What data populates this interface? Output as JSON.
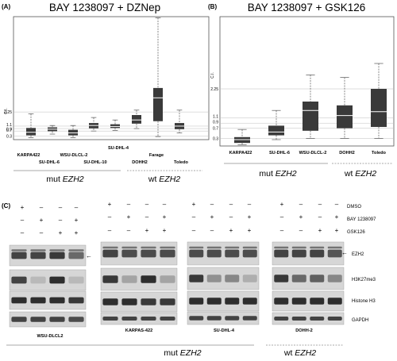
{
  "panel_a": {
    "label": "(A)",
    "title": "BAY 1238097 + DZNep",
    "ylabel": "C.I.",
    "groups": [
      {
        "text": "mut",
        "gene": "EZH2"
      },
      {
        "text": "wt",
        "gene": "EZH2"
      }
    ]
  },
  "panel_b": {
    "label": "(B)",
    "title": "BAY 1238097 + GSK126",
    "ylabel": "C.I.",
    "groups": [
      {
        "text": "mut",
        "gene": "EZH2"
      },
      {
        "text": "wt",
        "gene": "EZH2"
      }
    ]
  },
  "chart_data": [
    {
      "type": "box",
      "title": "BAY 1238097 + DZNep",
      "ylabel": "C.I.",
      "yticks": [
        "0.3",
        "0.7",
        "0.9",
        "1.1",
        "2.25"
      ],
      "ylim": [
        0,
        10
      ],
      "categories": [
        "KARPA422",
        "SU-DHL-6",
        "WSU-DLCL-2",
        "SU-DHL-10",
        "SU-DHL-4",
        "DOHH2",
        "Farage",
        "Toledo"
      ],
      "boxes": [
        {
          "min": 0.15,
          "q1": 0.35,
          "median": 0.6,
          "q3": 0.95,
          "max": 2.1
        },
        {
          "min": 0.45,
          "q1": 0.68,
          "median": 0.85,
          "q3": 1.0,
          "max": 1.15
        },
        {
          "min": 0.15,
          "q1": 0.35,
          "median": 0.55,
          "q3": 0.8,
          "max": 1.15
        },
        {
          "min": 0.7,
          "q1": 0.92,
          "median": 1.15,
          "q3": 1.35,
          "max": 1.8
        },
        {
          "min": 0.75,
          "q1": 0.95,
          "median": 1.07,
          "q3": 1.25,
          "max": 1.6
        },
        {
          "min": 0.9,
          "q1": 1.3,
          "median": 1.6,
          "q3": 2.0,
          "max": 2.4
        },
        {
          "min": 0.25,
          "q1": 1.5,
          "median": 3.4,
          "q3": 4.2,
          "max": 9.9
        },
        {
          "min": 0.55,
          "q1": 0.85,
          "median": 1.1,
          "q3": 1.35,
          "max": 2.4
        }
      ]
    },
    {
      "type": "box",
      "title": "BAY 1238097 + GSK126",
      "ylabel": "C.I.",
      "yticks": [
        "0.3",
        "0.7",
        "0.9",
        "1.1",
        "2.25"
      ],
      "ylim": [
        0,
        5
      ],
      "categories": [
        "KARPA422",
        "SU-DHL-6",
        "WSU-DLCL-2",
        "DOHH2",
        "Toledo"
      ],
      "boxes": [
        {
          "min": 0.05,
          "q1": 0.12,
          "median": 0.25,
          "q3": 0.35,
          "max": 0.65
        },
        {
          "min": 0.25,
          "q1": 0.42,
          "median": 0.55,
          "q3": 0.8,
          "max": 1.4
        },
        {
          "min": 0.3,
          "q1": 0.6,
          "median": 1.4,
          "q3": 1.75,
          "max": 2.8
        },
        {
          "min": 0.3,
          "q1": 0.7,
          "median": 1.2,
          "q3": 1.6,
          "max": 2.7
        },
        {
          "min": 0.3,
          "q1": 0.75,
          "median": 1.35,
          "q3": 2.25,
          "max": 3.25
        }
      ]
    }
  ],
  "panel_c": {
    "label": "(C)",
    "treatments": [
      "DMSO",
      "BAY 1238097",
      "GSK126"
    ],
    "signs": [
      [
        "+",
        "–",
        "–",
        "–"
      ],
      [
        "–",
        "+",
        "–",
        "+"
      ],
      [
        "–",
        "–",
        "+",
        "+"
      ]
    ],
    "proteins": [
      "EZH2",
      "H3K27me3",
      "Histone H3",
      "GAPDH"
    ],
    "cell_lines": [
      "WSU-DLCL2",
      "KARPAS-422",
      "SU-DHL-4",
      "DOHH-2"
    ],
    "arrow": "←",
    "groups": [
      {
        "text": "mut",
        "gene": "EZH2"
      },
      {
        "text": "wt",
        "gene": "EZH2"
      }
    ]
  }
}
